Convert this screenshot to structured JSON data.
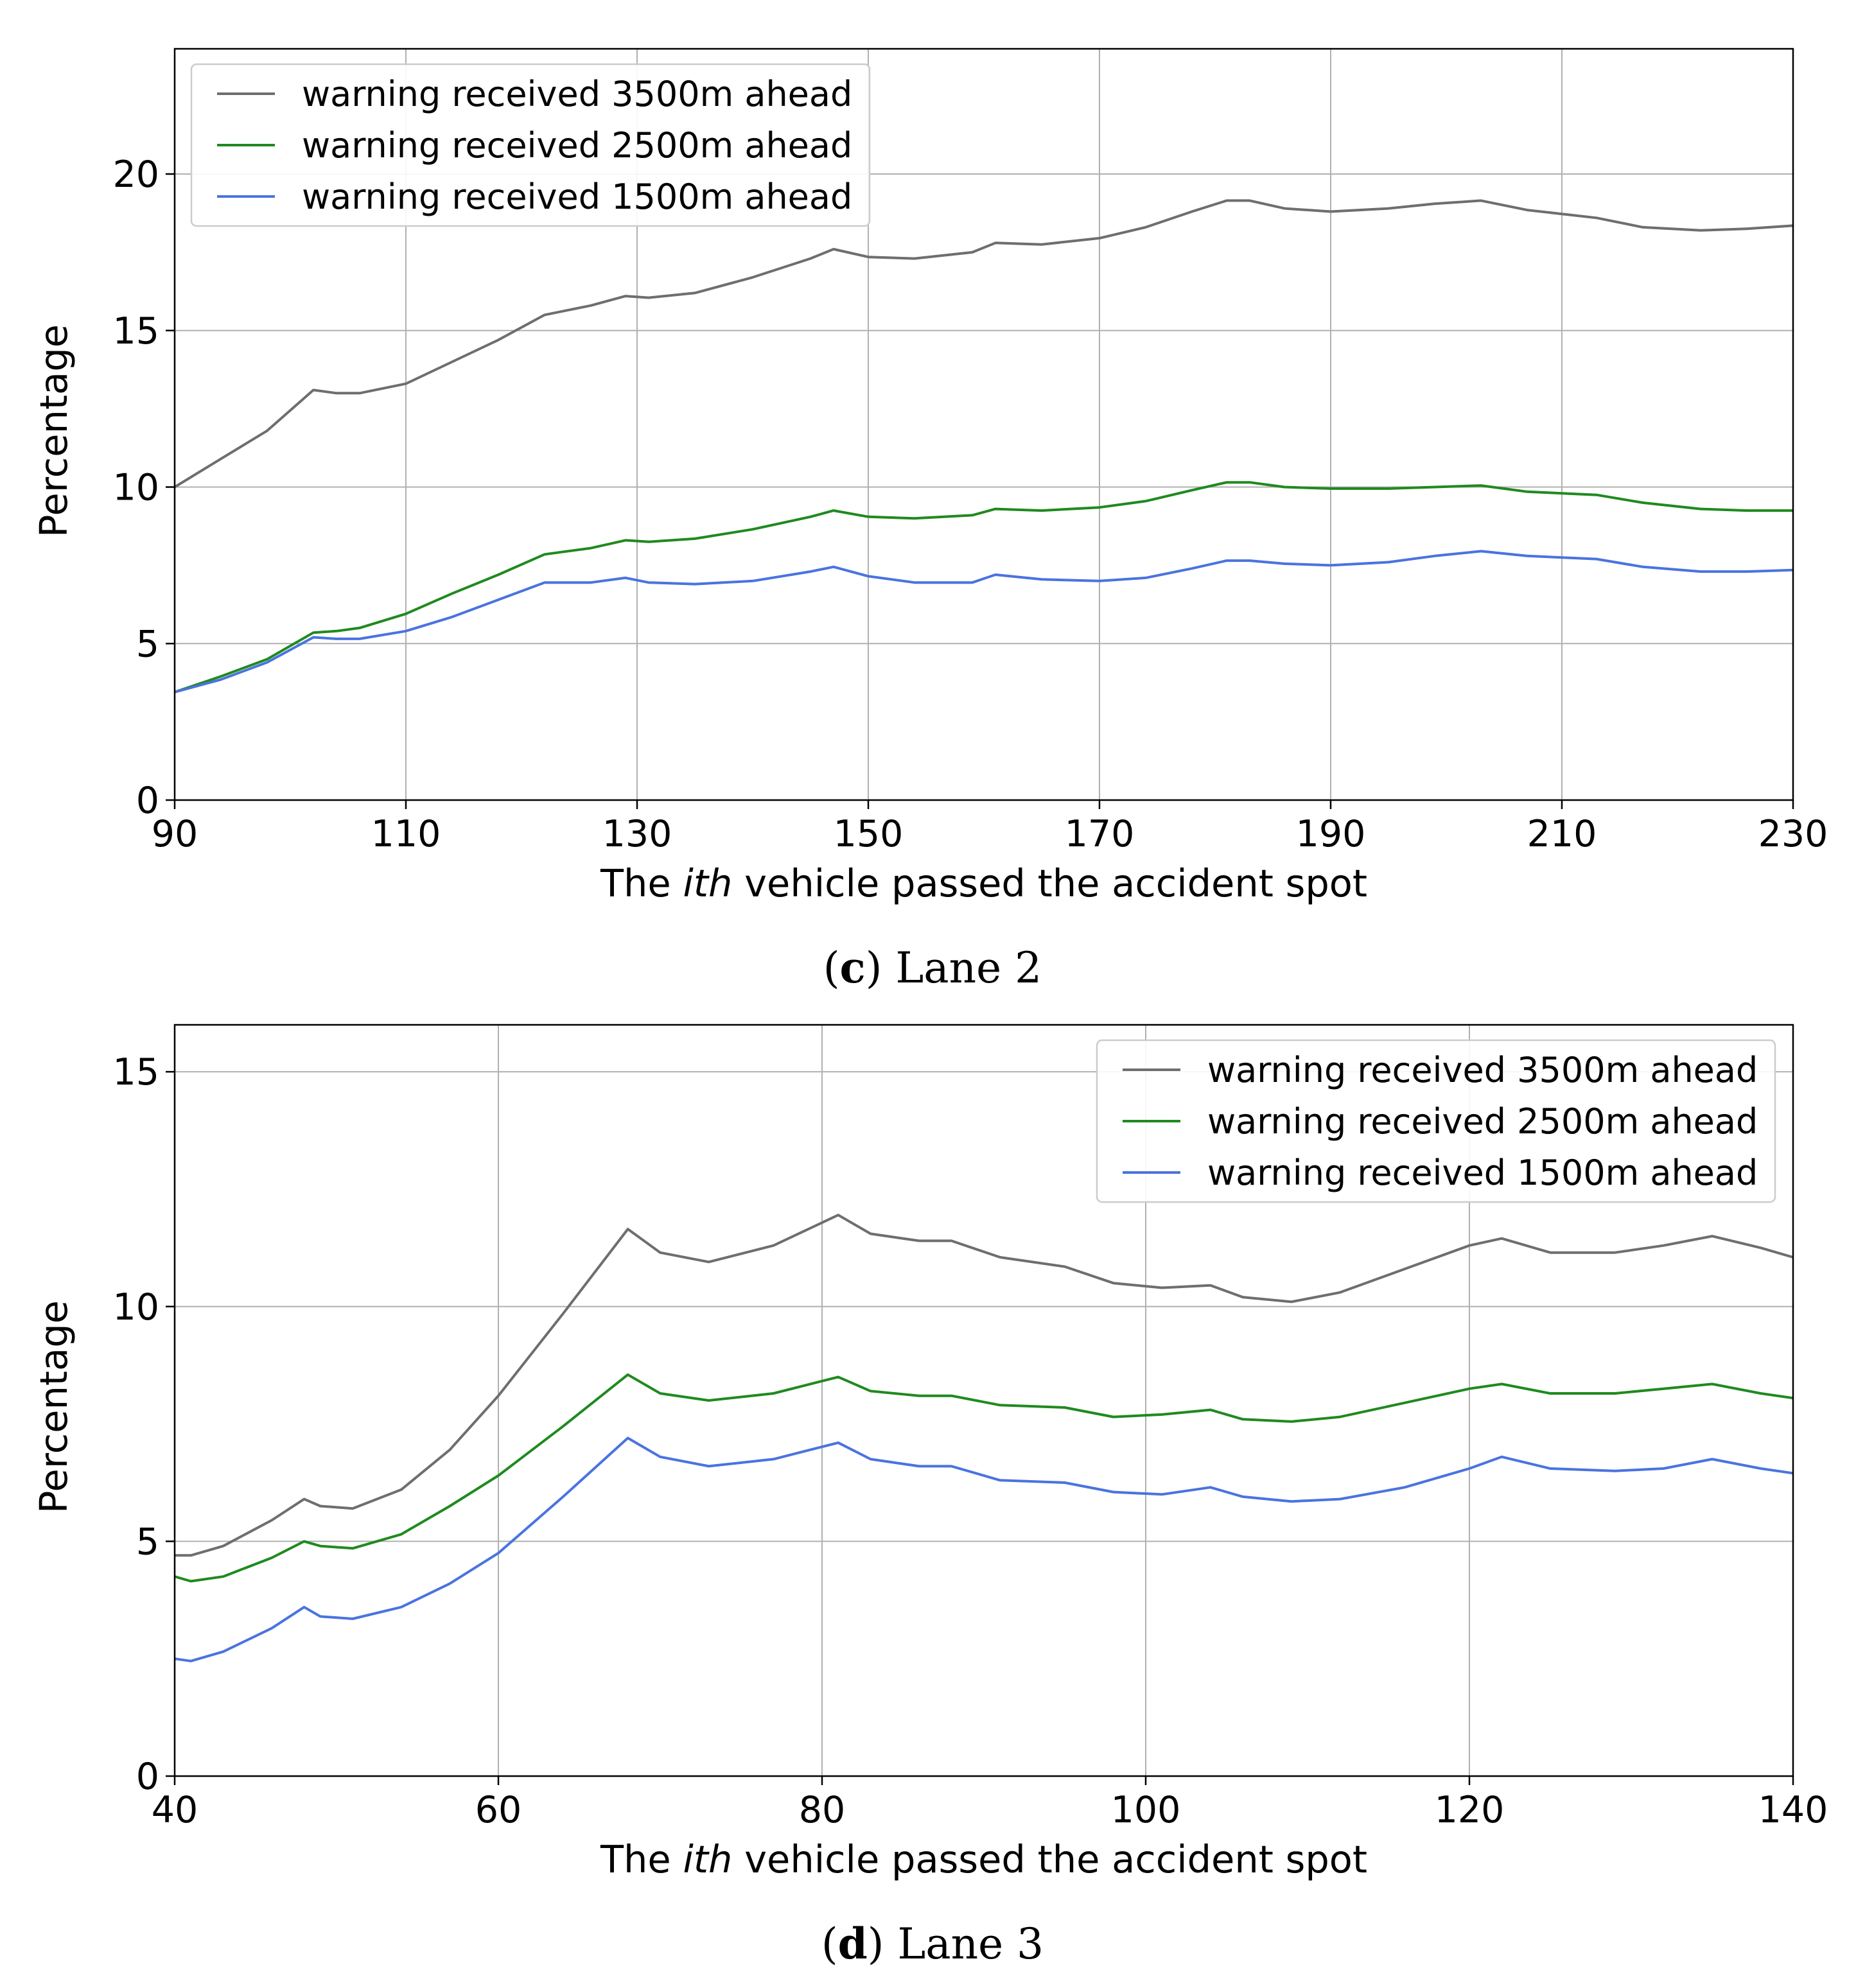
{
  "chart_data": [
    {
      "type": "line",
      "caption": {
        "open": "(",
        "letter": "c",
        "close": ")",
        "rest": " Lane 2"
      },
      "xlabel": {
        "prefix": "The ",
        "italic": "ith",
        "suffix": " vehicle passed the accident spot"
      },
      "ylabel": "Percentage",
      "xlim": [
        90,
        230
      ],
      "ylim": [
        0,
        24
      ],
      "xticks": [
        90,
        110,
        130,
        150,
        170,
        190,
        210,
        230
      ],
      "yticks": [
        0,
        5,
        10,
        15,
        20
      ],
      "grid": true,
      "legend_position": "top-left",
      "series": [
        {
          "name": "warning received 3500m ahead",
          "color": "#6e6e6e",
          "x": [
            90,
            94,
            98,
            102,
            104,
            106,
            110,
            114,
            118,
            122,
            126,
            129,
            131,
            135,
            140,
            145,
            147,
            150,
            154,
            159,
            161,
            165,
            170,
            174,
            178,
            181,
            183,
            186,
            190,
            195,
            199,
            203,
            207,
            213,
            217,
            222,
            226,
            230
          ],
          "y": [
            10.0,
            10.9,
            11.8,
            13.1,
            13.0,
            13.0,
            13.3,
            14.0,
            14.7,
            15.5,
            15.8,
            16.1,
            16.05,
            16.2,
            16.7,
            17.3,
            17.6,
            17.35,
            17.3,
            17.5,
            17.8,
            17.75,
            17.95,
            18.3,
            18.8,
            19.15,
            19.15,
            18.9,
            18.8,
            18.9,
            19.05,
            19.15,
            18.85,
            18.6,
            18.3,
            18.2,
            18.25,
            18.35
          ]
        },
        {
          "name": "warning received 2500m ahead",
          "color": "#1f8a1f",
          "x": [
            90,
            94,
            98,
            102,
            104,
            106,
            110,
            114,
            118,
            122,
            126,
            129,
            131,
            135,
            140,
            145,
            147,
            150,
            154,
            159,
            161,
            165,
            170,
            174,
            178,
            181,
            183,
            186,
            190,
            195,
            199,
            203,
            207,
            213,
            217,
            222,
            226,
            230
          ],
          "y": [
            3.45,
            3.95,
            4.5,
            5.35,
            5.4,
            5.5,
            5.95,
            6.6,
            7.2,
            7.85,
            8.05,
            8.3,
            8.25,
            8.35,
            8.65,
            9.05,
            9.25,
            9.05,
            9.0,
            9.1,
            9.3,
            9.25,
            9.35,
            9.55,
            9.9,
            10.15,
            10.15,
            10.0,
            9.95,
            9.95,
            10.0,
            10.05,
            9.85,
            9.75,
            9.5,
            9.3,
            9.25,
            9.25
          ]
        },
        {
          "name": "warning received 1500m ahead",
          "color": "#4a73e0",
          "x": [
            90,
            94,
            98,
            102,
            104,
            106,
            110,
            114,
            118,
            122,
            126,
            129,
            131,
            135,
            140,
            145,
            147,
            150,
            154,
            159,
            161,
            165,
            170,
            174,
            178,
            181,
            183,
            186,
            190,
            195,
            199,
            203,
            207,
            213,
            217,
            222,
            226,
            230
          ],
          "y": [
            3.45,
            3.85,
            4.4,
            5.2,
            5.15,
            5.15,
            5.4,
            5.85,
            6.4,
            6.95,
            6.95,
            7.1,
            6.95,
            6.9,
            7.0,
            7.3,
            7.45,
            7.15,
            6.95,
            6.95,
            7.2,
            7.05,
            7.0,
            7.1,
            7.4,
            7.65,
            7.65,
            7.55,
            7.5,
            7.6,
            7.8,
            7.95,
            7.8,
            7.7,
            7.45,
            7.3,
            7.3,
            7.35
          ]
        }
      ]
    },
    {
      "type": "line",
      "caption": {
        "open": "(",
        "letter": "d",
        "close": ")",
        "rest": " Lane 3"
      },
      "xlabel": {
        "prefix": "The  ",
        "italic": "ith",
        "suffix": " vehicle passed the accident spot"
      },
      "ylabel": "Percentage",
      "xlim": [
        40,
        140
      ],
      "ylim": [
        0,
        16
      ],
      "xticks": [
        40,
        60,
        80,
        100,
        120,
        140
      ],
      "yticks": [
        0,
        5,
        10,
        15
      ],
      "grid": true,
      "legend_position": "top-right",
      "series": [
        {
          "name": "warning received 3500m ahead",
          "color": "#6e6e6e",
          "x": [
            40,
            41,
            43,
            46,
            48,
            49,
            51,
            54,
            57,
            60,
            64,
            68,
            70,
            73,
            77,
            81,
            83,
            86,
            88,
            91,
            95,
            98,
            101,
            104,
            106,
            109,
            112,
            116,
            120,
            122,
            125,
            129,
            132,
            135,
            138,
            140
          ],
          "y": [
            4.7,
            4.7,
            4.9,
            5.45,
            5.9,
            5.75,
            5.7,
            6.1,
            6.95,
            8.1,
            9.85,
            11.65,
            11.15,
            10.95,
            11.3,
            11.95,
            11.55,
            11.4,
            11.4,
            11.05,
            10.85,
            10.5,
            10.4,
            10.45,
            10.2,
            10.1,
            10.3,
            10.8,
            11.3,
            11.45,
            11.15,
            11.15,
            11.3,
            11.5,
            11.25,
            11.05
          ]
        },
        {
          "name": "warning received 2500m ahead",
          "color": "#1f8a1f",
          "x": [
            40,
            41,
            43,
            46,
            48,
            49,
            51,
            54,
            57,
            60,
            64,
            68,
            70,
            73,
            77,
            81,
            83,
            86,
            88,
            91,
            95,
            98,
            101,
            104,
            106,
            109,
            112,
            116,
            120,
            122,
            125,
            129,
            132,
            135,
            138,
            140
          ],
          "y": [
            4.25,
            4.15,
            4.25,
            4.65,
            5.0,
            4.9,
            4.85,
            5.15,
            5.75,
            6.4,
            7.45,
            8.55,
            8.15,
            8.0,
            8.15,
            8.5,
            8.2,
            8.1,
            8.1,
            7.9,
            7.85,
            7.65,
            7.7,
            7.8,
            7.6,
            7.55,
            7.65,
            7.95,
            8.25,
            8.35,
            8.15,
            8.15,
            8.25,
            8.35,
            8.15,
            8.05
          ]
        },
        {
          "name": "warning received 1500m ahead",
          "color": "#4a73e0",
          "x": [
            40,
            41,
            43,
            46,
            48,
            49,
            51,
            54,
            57,
            60,
            64,
            68,
            70,
            73,
            77,
            81,
            83,
            86,
            88,
            91,
            95,
            98,
            101,
            104,
            106,
            109,
            112,
            116,
            120,
            122,
            125,
            129,
            132,
            135,
            138,
            140
          ],
          "y": [
            2.5,
            2.45,
            2.65,
            3.15,
            3.6,
            3.4,
            3.35,
            3.6,
            4.1,
            4.75,
            5.95,
            7.2,
            6.8,
            6.6,
            6.75,
            7.1,
            6.75,
            6.6,
            6.6,
            6.3,
            6.25,
            6.05,
            6.0,
            6.15,
            5.95,
            5.85,
            5.9,
            6.15,
            6.55,
            6.8,
            6.55,
            6.5,
            6.55,
            6.75,
            6.55,
            6.45
          ]
        }
      ]
    }
  ]
}
